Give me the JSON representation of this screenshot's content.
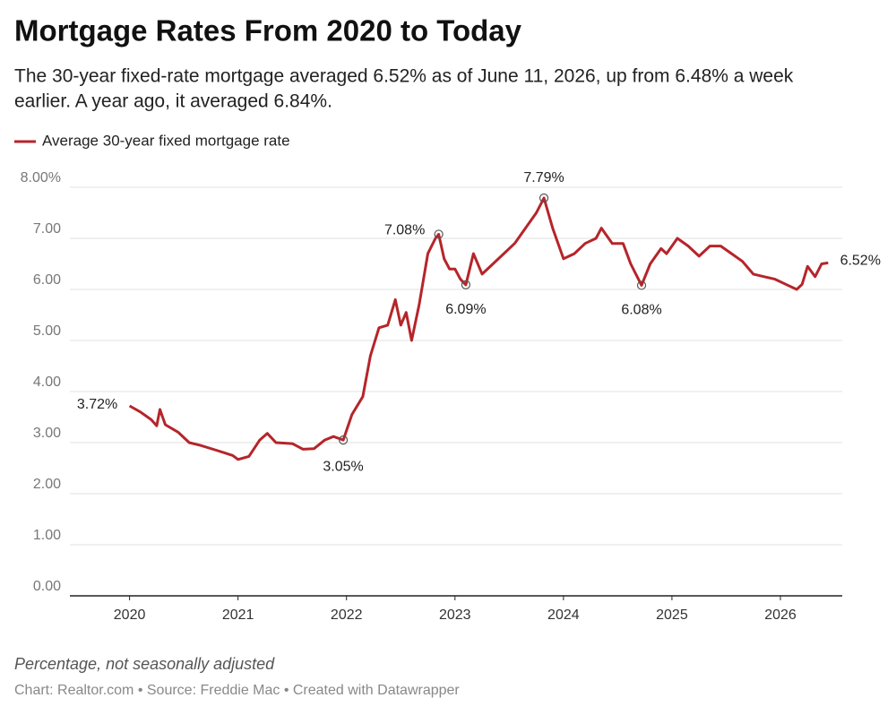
{
  "chart_data": {
    "type": "line",
    "title": "Mortgage Rates From 2020 to Today",
    "subtitle": [
      "The 30-year fixed-rate mortgage averaged 6.52% as of June 11, 2026, up from 6.48% a week",
      "earlier. A year ago, it averaged 6.84%."
    ],
    "note": "Percentage, not seasonally adjusted",
    "credits": "Chart: Realtor.com • Source: Freddie Mac • Created with Datawrapper",
    "x": [
      2020.0,
      2020.1,
      2020.2,
      2020.25,
      2020.28,
      2020.33,
      2020.45,
      2020.55,
      2020.65,
      2020.8,
      2020.95,
      2021.0,
      2021.1,
      2021.2,
      2021.27,
      2021.35,
      2021.5,
      2021.6,
      2021.7,
      2021.8,
      2021.88,
      2021.97,
      2022.05,
      2022.15,
      2022.22,
      2022.3,
      2022.38,
      2022.45,
      2022.5,
      2022.55,
      2022.6,
      2022.67,
      2022.75,
      2022.82,
      2022.85,
      2022.9,
      2022.95,
      2023.0,
      2023.05,
      2023.1,
      2023.17,
      2023.25,
      2023.35,
      2023.45,
      2023.55,
      2023.65,
      2023.75,
      2023.82,
      2023.9,
      2024.0,
      2024.1,
      2024.2,
      2024.3,
      2024.35,
      2024.45,
      2024.55,
      2024.62,
      2024.72,
      2024.8,
      2024.9,
      2024.95,
      2025.05,
      2025.15,
      2025.25,
      2025.35,
      2025.45,
      2025.55,
      2025.65,
      2025.75,
      2025.85,
      2025.95,
      2026.05,
      2026.15,
      2026.2,
      2026.25,
      2026.32,
      2026.38,
      2026.44
    ],
    "series": [
      {
        "name": "Average 30-year fixed mortgage rate",
        "color": "#b5252a",
        "values": [
          3.72,
          3.6,
          3.45,
          3.33,
          3.65,
          3.35,
          3.2,
          3.0,
          2.95,
          2.85,
          2.75,
          2.67,
          2.73,
          3.05,
          3.18,
          3.0,
          2.98,
          2.87,
          2.88,
          3.05,
          3.12,
          3.05,
          3.55,
          3.9,
          4.7,
          5.25,
          5.3,
          5.8,
          5.3,
          5.55,
          5.0,
          5.7,
          6.7,
          7.0,
          7.08,
          6.6,
          6.4,
          6.4,
          6.2,
          6.09,
          6.7,
          6.3,
          6.5,
          6.7,
          6.9,
          7.2,
          7.5,
          7.79,
          7.2,
          6.6,
          6.7,
          6.9,
          7.0,
          7.2,
          6.9,
          6.9,
          6.5,
          6.08,
          6.5,
          6.8,
          6.7,
          7.0,
          6.85,
          6.65,
          6.85,
          6.85,
          6.7,
          6.55,
          6.3,
          6.25,
          6.2,
          6.1,
          6.0,
          6.1,
          6.45,
          6.25,
          6.5,
          6.52
        ]
      }
    ],
    "annotations": [
      {
        "x": 2020.0,
        "value": 3.72,
        "label": "3.72%",
        "marker": false
      },
      {
        "x": 2021.97,
        "value": 3.05,
        "label": "3.05%",
        "marker": true
      },
      {
        "x": 2022.85,
        "value": 7.08,
        "label": "7.08%",
        "marker": true
      },
      {
        "x": 2023.1,
        "value": 6.09,
        "label": "6.09%",
        "marker": true
      },
      {
        "x": 2023.82,
        "value": 7.79,
        "label": "7.79%",
        "marker": true
      },
      {
        "x": 2024.72,
        "value": 6.08,
        "label": "6.08%",
        "marker": true
      },
      {
        "x": 2026.44,
        "value": 6.52,
        "label": "6.52%",
        "marker": false
      }
    ],
    "xlim": [
      2019.45,
      2026.57
    ],
    "xticks": [
      2020,
      2021,
      2022,
      2023,
      2024,
      2025,
      2026
    ],
    "ylim": [
      0,
      8
    ],
    "yticks": [
      {
        "value": 0,
        "label": "0.00"
      },
      {
        "value": 1,
        "label": "1.00"
      },
      {
        "value": 2,
        "label": "2.00"
      },
      {
        "value": 3,
        "label": "3.00"
      },
      {
        "value": 4,
        "label": "4.00"
      },
      {
        "value": 5,
        "label": "5.00"
      },
      {
        "value": 6,
        "label": "6.00"
      },
      {
        "value": 7,
        "label": "7.00"
      },
      {
        "value": 8,
        "label": "8.00%"
      }
    ],
    "grid": true,
    "legend": "top-left"
  }
}
